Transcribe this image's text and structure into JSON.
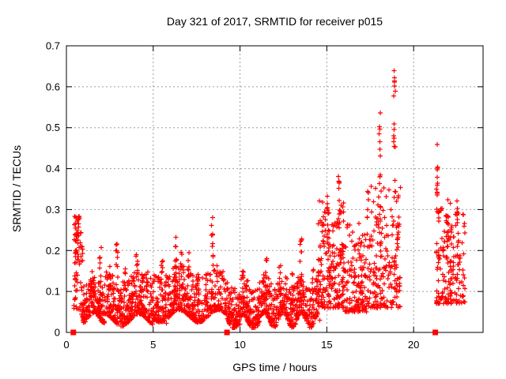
{
  "page": {
    "background": "#ffffff"
  },
  "chart_data": {
    "type": "scatter",
    "title": "Day 321 of 2017, SRMTID for receiver p015",
    "xlabel": "GPS time / hours",
    "ylabel": "SRMTID / TECUs",
    "xlim": [
      0,
      24
    ],
    "ylim": [
      0,
      0.7
    ],
    "xticks": [
      0,
      5,
      10,
      15,
      20
    ],
    "yticks": [
      0,
      0.1,
      0.2,
      0.3,
      0.4,
      0.5,
      0.6,
      0.7
    ],
    "grid": true,
    "legend": "none",
    "marker": "plus",
    "marker_color": "#ff0000",
    "grid_color": "#9e9e9e",
    "frame_color": "#000000",
    "seed": 7,
    "band_segments": [
      {
        "x0": 0.42,
        "x1": 0.85,
        "n": 60,
        "lo": 0.055,
        "hi": 0.285,
        "skew": 1.1
      },
      {
        "x0": 0.85,
        "x1": 2.2,
        "n": 170,
        "lo": 0.035,
        "hi": 0.125,
        "skew": 2.0,
        "wave": {
          "amp": 0.012,
          "freq": 0.8,
          "phase": 0
        }
      },
      {
        "x0": 2.2,
        "x1": 5.0,
        "n": 340,
        "lo": 0.03,
        "hi": 0.14,
        "skew": 2.2,
        "wave": {
          "amp": 0.015,
          "freq": 0.5,
          "phase": 1
        }
      },
      {
        "x0": 5.0,
        "x1": 9.25,
        "n": 500,
        "lo": 0.04,
        "hi": 0.15,
        "skew": 2.3,
        "wave": {
          "amp": 0.015,
          "freq": 0.45,
          "phase": 2
        }
      },
      {
        "x0": 9.25,
        "x1": 11.0,
        "n": 210,
        "lo": 0.025,
        "hi": 0.125,
        "skew": 2.0,
        "wave": {
          "amp": 0.018,
          "freq": 0.9,
          "phase": 0.5
        }
      },
      {
        "x0": 11.0,
        "x1": 14.5,
        "n": 430,
        "lo": 0.03,
        "hi": 0.13,
        "skew": 2.0,
        "wave": {
          "amp": 0.018,
          "freq": 0.95,
          "phase": 2.5
        }
      },
      {
        "x0": 14.5,
        "x1": 16.0,
        "n": 200,
        "lo": 0.06,
        "hi": 0.34,
        "skew": 1.7
      },
      {
        "x0": 16.0,
        "x1": 17.3,
        "n": 140,
        "lo": 0.05,
        "hi": 0.27,
        "skew": 1.9
      },
      {
        "x0": 17.3,
        "x1": 19.25,
        "n": 210,
        "lo": 0.06,
        "hi": 0.36,
        "skew": 1.7
      },
      {
        "x0": 21.3,
        "x1": 22.95,
        "n": 160,
        "lo": 0.07,
        "hi": 0.33,
        "skew": 1.7
      }
    ],
    "spike_columns": [
      {
        "x": 0.55,
        "lo": 0.17,
        "hi": 0.285,
        "n": 12,
        "w": 0.12
      },
      {
        "x": 0.9,
        "lo": 0.14,
        "hi": 0.22,
        "n": 6,
        "w": 0.1
      },
      {
        "x": 1.45,
        "lo": 0.1,
        "hi": 0.16,
        "n": 6,
        "w": 0.12
      },
      {
        "x": 1.95,
        "lo": 0.12,
        "hi": 0.21,
        "n": 8,
        "w": 0.12
      },
      {
        "x": 2.5,
        "lo": 0.1,
        "hi": 0.17,
        "n": 6,
        "w": 0.12
      },
      {
        "x": 2.9,
        "lo": 0.13,
        "hi": 0.23,
        "n": 9,
        "w": 0.12
      },
      {
        "x": 3.35,
        "lo": 0.1,
        "hi": 0.175,
        "n": 6,
        "w": 0.1
      },
      {
        "x": 4.05,
        "lo": 0.12,
        "hi": 0.2,
        "n": 8,
        "w": 0.12
      },
      {
        "x": 4.65,
        "lo": 0.1,
        "hi": 0.16,
        "n": 5,
        "w": 0.1
      },
      {
        "x": 5.5,
        "lo": 0.11,
        "hi": 0.19,
        "n": 7,
        "w": 0.12
      },
      {
        "x": 6.3,
        "lo": 0.13,
        "hi": 0.25,
        "n": 10,
        "w": 0.12
      },
      {
        "x": 6.6,
        "lo": 0.12,
        "hi": 0.22,
        "n": 7,
        "w": 0.1
      },
      {
        "x": 7.05,
        "lo": 0.12,
        "hi": 0.2,
        "n": 7,
        "w": 0.1
      },
      {
        "x": 7.6,
        "lo": 0.1,
        "hi": 0.16,
        "n": 5,
        "w": 0.1
      },
      {
        "x": 8.4,
        "lo": 0.15,
        "hi": 0.285,
        "n": 10,
        "w": 0.1
      },
      {
        "x": 9.0,
        "lo": 0.1,
        "hi": 0.155,
        "n": 4,
        "w": 0.08
      },
      {
        "x": 10.2,
        "lo": 0.1,
        "hi": 0.17,
        "n": 7,
        "w": 0.1
      },
      {
        "x": 11.5,
        "lo": 0.11,
        "hi": 0.19,
        "n": 8,
        "w": 0.1
      },
      {
        "x": 12.3,
        "lo": 0.1,
        "hi": 0.165,
        "n": 6,
        "w": 0.1
      },
      {
        "x": 13.05,
        "lo": 0.1,
        "hi": 0.16,
        "n": 5,
        "w": 0.1
      },
      {
        "x": 13.5,
        "lo": 0.12,
        "hi": 0.235,
        "n": 9,
        "w": 0.12
      },
      {
        "x": 14.2,
        "lo": 0.1,
        "hi": 0.155,
        "n": 5,
        "w": 0.1
      },
      {
        "x": 15.05,
        "lo": 0.15,
        "hi": 0.335,
        "n": 14,
        "w": 0.14
      },
      {
        "x": 15.7,
        "lo": 0.18,
        "hi": 0.385,
        "n": 12,
        "w": 0.12
      },
      {
        "x": 17.0,
        "lo": 0.12,
        "hi": 0.25,
        "n": 8,
        "w": 0.12
      },
      {
        "x": 18.05,
        "lo": 0.35,
        "hi": 0.585,
        "n": 11,
        "w": 0.08
      },
      {
        "x": 18.9,
        "lo": 0.36,
        "hi": 0.65,
        "n": 15,
        "w": 0.1
      },
      {
        "x": 19.1,
        "lo": 0.14,
        "hi": 0.33,
        "n": 8,
        "w": 0.1
      },
      {
        "x": 21.35,
        "lo": 0.3,
        "hi": 0.465,
        "n": 12,
        "w": 0.08
      },
      {
        "x": 21.45,
        "lo": 0.12,
        "hi": 0.3,
        "n": 8,
        "w": 0.1
      },
      {
        "x": 21.95,
        "lo": 0.12,
        "hi": 0.3,
        "n": 10,
        "w": 0.12
      },
      {
        "x": 22.55,
        "lo": 0.13,
        "hi": 0.35,
        "n": 12,
        "w": 0.12
      }
    ],
    "outlier_points": [
      [
        5.75,
        0.022
      ],
      [
        9.9,
        0.018
      ],
      [
        10.0,
        0.02
      ],
      [
        11.85,
        0.025
      ],
      [
        13.2,
        0.02
      ],
      [
        14.6,
        0.03
      ],
      [
        16.8,
        0.05
      ],
      [
        19.2,
        0.12
      ],
      [
        22.85,
        0.09
      ]
    ],
    "square_markers": {
      "shape": "filled-square",
      "color": "#ff0000",
      "points": [
        [
          0.4,
          0
        ],
        [
          9.25,
          0
        ],
        [
          21.25,
          0
        ]
      ]
    }
  }
}
